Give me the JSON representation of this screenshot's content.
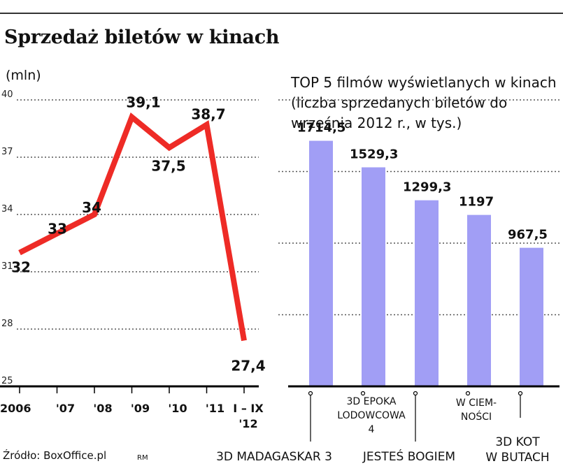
{
  "title": "Sprzedaż biletów w kinach",
  "source": "Źródło: BoxOffice.pl",
  "credit": "RM",
  "chart_data": [
    {
      "type": "line",
      "unit": "(mln)",
      "categories": [
        "2006",
        "'07",
        "'08",
        "'09",
        "'10",
        "'11",
        "I – IX\n'12"
      ],
      "values": [
        32,
        33,
        34,
        39.1,
        37.5,
        38.7,
        27.4
      ],
      "value_labels": [
        "32",
        "33",
        "34",
        "39,1",
        "37,5",
        "38,7",
        "27,4"
      ],
      "yticks": [
        25,
        28,
        31,
        34,
        37,
        40
      ],
      "ylim": [
        25,
        40
      ],
      "grid": true,
      "color": "#ee2b26"
    },
    {
      "type": "bar",
      "title": "TOP 5 filmów wyświetlanych w kinach (liczba sprzedanych biletów do września 2012 r., w tys.)",
      "categories": [
        "3D MADAGASKAR 3",
        "3D EPOKA LODOWCOWA 4",
        "JESTEŚ BOGIEM",
        "W CIEM-NOŚCI",
        "3D KOT W BUTACH"
      ],
      "values": [
        1714.5,
        1529.3,
        1299.3,
        1197,
        967.5
      ],
      "value_labels": [
        "1714,5",
        "1529,3",
        "1299,3",
        "1197",
        "967,5"
      ],
      "ylim": [
        0,
        2000
      ],
      "grid": true,
      "color": "#a19ef5"
    }
  ]
}
